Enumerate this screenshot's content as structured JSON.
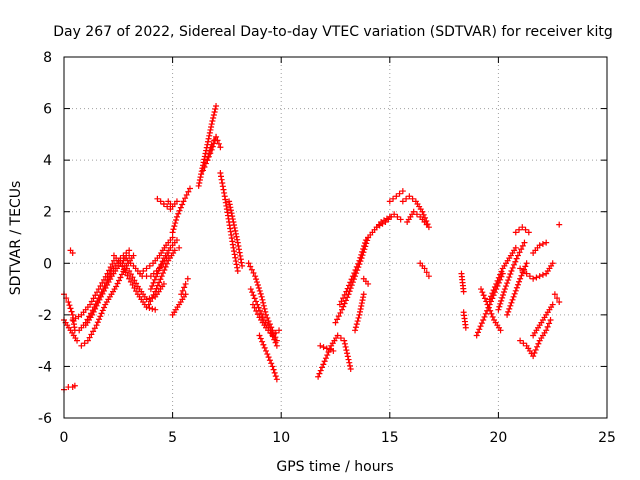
{
  "chart_data": {
    "type": "scatter",
    "title": "Day 267 of 2022, Sidereal Day-to-day VTEC variation (SDTVAR) for receiver kitg",
    "xlabel": "GPS time / hours",
    "ylabel": "SDTVAR / TECUs",
    "xlim": [
      0,
      25
    ],
    "ylim": [
      -6,
      8
    ],
    "xticks": [
      "0",
      "5",
      "10",
      "15",
      "20",
      "25"
    ],
    "yticks": [
      "-6",
      "-4",
      "-2",
      "0",
      "2",
      "4",
      "6",
      "8"
    ],
    "grid": true,
    "marker": "+",
    "color": "#ff0000",
    "tracks": [
      {
        "x": [
          0.0,
          0.2,
          0.4,
          0.5
        ],
        "y": [
          -1.2,
          -1.5,
          -2.0,
          -2.6
        ]
      },
      {
        "x": [
          0.0,
          0.3,
          0.6
        ],
        "y": [
          -2.2,
          -2.6,
          -3.0
        ]
      },
      {
        "x": [
          0.0,
          0.2,
          0.4,
          0.5
        ],
        "y": [
          -4.9,
          -4.8,
          -4.8,
          -4.75
        ]
      },
      {
        "x": [
          0.3,
          0.4
        ],
        "y": [
          0.5,
          0.4
        ]
      },
      {
        "x": [
          0.4,
          0.8,
          1.2,
          1.6,
          2.0,
          2.3
        ],
        "y": [
          -2.2,
          -2.0,
          -1.6,
          -1.0,
          -0.4,
          0.1
        ]
      },
      {
        "x": [
          0.7,
          1.0,
          1.4,
          1.8,
          2.2,
          2.6,
          3.0
        ],
        "y": [
          -2.6,
          -2.3,
          -1.7,
          -1.0,
          -0.3,
          0.2,
          0.5
        ]
      },
      {
        "x": [
          0.8,
          1.1,
          1.5,
          1.9,
          2.4,
          2.8,
          3.2
        ],
        "y": [
          -3.2,
          -3.0,
          -2.4,
          -1.6,
          -0.9,
          -0.2,
          0.3
        ]
      },
      {
        "x": [
          1.0,
          1.3,
          1.7,
          2.2,
          2.6,
          3.0
        ],
        "y": [
          -2.4,
          -2.0,
          -1.3,
          -0.5,
          0.0,
          0.3
        ]
      },
      {
        "x": [
          2.3,
          2.6,
          3.0,
          3.4,
          3.8,
          4.2
        ],
        "y": [
          0.3,
          0.0,
          -0.6,
          -1.2,
          -1.7,
          -1.8
        ]
      },
      {
        "x": [
          2.6,
          3.0,
          3.4,
          3.8,
          4.2,
          4.6
        ],
        "y": [
          0.1,
          -0.3,
          -0.9,
          -1.4,
          -1.3,
          -0.8
        ]
      },
      {
        "x": [
          2.8,
          3.2,
          3.6,
          4.0,
          4.4,
          4.8
        ],
        "y": [
          0.2,
          -0.1,
          -0.5,
          -0.5,
          -0.2,
          0.3
        ]
      },
      {
        "x": [
          3.5,
          3.8,
          4.1,
          4.4,
          4.7,
          5.0
        ],
        "y": [
          -0.4,
          -0.2,
          0.0,
          0.3,
          0.7,
          1.0
        ]
      },
      {
        "x": [
          3.9,
          4.2,
          4.5,
          4.8,
          5.1,
          5.3
        ],
        "y": [
          -1.6,
          -1.1,
          -0.5,
          0.1,
          0.5,
          0.6
        ]
      },
      {
        "x": [
          4.0,
          4.3,
          4.6,
          4.9,
          5.2
        ],
        "y": [
          -1.0,
          -0.4,
          0.2,
          0.6,
          0.9
        ]
      },
      {
        "x": [
          4.3,
          4.6,
          4.9
        ],
        "y": [
          2.5,
          2.3,
          2.1
        ]
      },
      {
        "x": [
          4.6,
          4.8,
          5.0,
          5.2
        ],
        "y": [
          2.3,
          2.4,
          2.2,
          2.4
        ]
      },
      {
        "x": [
          5.0,
          5.2,
          5.5,
          5.8
        ],
        "y": [
          1.2,
          1.8,
          2.4,
          2.9
        ]
      },
      {
        "x": [
          5.0,
          5.3,
          5.6
        ],
        "y": [
          -2.0,
          -1.6,
          -1.2
        ]
      },
      {
        "x": [
          5.4,
          5.6,
          5.7
        ],
        "y": [
          -1.2,
          -0.8,
          -0.6
        ]
      },
      {
        "x": [
          6.2,
          6.4,
          6.6,
          6.8,
          7.0
        ],
        "y": [
          3.0,
          3.8,
          4.6,
          5.4,
          6.1
        ]
      },
      {
        "x": [
          6.4,
          6.6,
          6.8,
          7.0
        ],
        "y": [
          3.6,
          4.0,
          4.4,
          4.9
        ]
      },
      {
        "x": [
          6.6,
          6.8,
          7.0,
          7.2
        ],
        "y": [
          4.0,
          4.6,
          4.9,
          4.5
        ]
      },
      {
        "x": [
          7.2,
          7.4,
          7.6,
          7.8,
          8.0
        ],
        "y": [
          3.5,
          2.6,
          1.6,
          0.6,
          -0.3
        ]
      },
      {
        "x": [
          7.6,
          7.8,
          8.0,
          8.2
        ],
        "y": [
          2.4,
          1.6,
          0.8,
          -0.1
        ]
      },
      {
        "x": [
          8.5,
          8.8,
          9.1,
          9.3,
          9.6,
          9.8
        ],
        "y": [
          0.0,
          -0.5,
          -1.3,
          -2.0,
          -2.6,
          -3.0
        ]
      },
      {
        "x": [
          8.6,
          8.9,
          9.2,
          9.5,
          9.8
        ],
        "y": [
          -1.0,
          -1.6,
          -2.2,
          -2.6,
          -3.2
        ]
      },
      {
        "x": [
          8.7,
          9.0,
          9.3,
          9.6,
          9.9
        ],
        "y": [
          -1.6,
          -2.1,
          -2.5,
          -2.8,
          -2.6
        ]
      },
      {
        "x": [
          9.0,
          9.3,
          9.6,
          9.8
        ],
        "y": [
          -2.8,
          -3.4,
          -4.0,
          -4.5
        ]
      },
      {
        "x": [
          11.7,
          12.0,
          12.3,
          12.6,
          12.9,
          13.2
        ],
        "y": [
          -4.4,
          -3.8,
          -3.2,
          -2.8,
          -3.0,
          -4.1
        ]
      },
      {
        "x": [
          11.8,
          12.1,
          12.4
        ],
        "y": [
          -3.2,
          -3.3,
          -3.4
        ]
      },
      {
        "x": [
          12.5,
          12.8,
          13.1,
          13.4,
          13.7,
          14.0
        ],
        "y": [
          -2.3,
          -1.8,
          -1.2,
          -0.5,
          0.2,
          1.0
        ]
      },
      {
        "x": [
          12.7,
          13.0,
          13.3,
          13.6,
          13.9
        ],
        "y": [
          -1.6,
          -1.1,
          -0.5,
          0.1,
          0.9
        ]
      },
      {
        "x": [
          13.4,
          13.6,
          13.8
        ],
        "y": [
          -2.6,
          -2.0,
          -1.2
        ]
      },
      {
        "x": [
          14.0,
          14.3,
          14.6,
          15.0
        ],
        "y": [
          1.0,
          1.3,
          1.6,
          1.8
        ]
      },
      {
        "x": [
          14.4,
          14.8,
          15.2,
          15.5
        ],
        "y": [
          1.4,
          1.6,
          1.9,
          1.7
        ]
      },
      {
        "x": [
          15.0,
          15.3,
          15.6
        ],
        "y": [
          2.4,
          2.6,
          2.8
        ]
      },
      {
        "x": [
          15.6,
          15.9,
          16.2,
          16.5,
          16.8
        ],
        "y": [
          2.4,
          2.6,
          2.4,
          2.0,
          1.4
        ]
      },
      {
        "x": [
          15.8,
          16.1,
          16.4,
          16.7
        ],
        "y": [
          1.6,
          2.0,
          1.8,
          1.5
        ]
      },
      {
        "x": [
          16.4,
          16.6,
          16.8
        ],
        "y": [
          0.0,
          -0.2,
          -0.5
        ]
      },
      {
        "x": [
          13.8,
          14.0
        ],
        "y": [
          -0.6,
          -0.8
        ]
      },
      {
        "x": [
          18.3,
          18.4
        ],
        "y": [
          -0.4,
          -1.1
        ]
      },
      {
        "x": [
          18.4,
          18.5
        ],
        "y": [
          -1.9,
          -2.5
        ]
      },
      {
        "x": [
          19.0,
          19.3,
          19.6,
          19.9,
          20.2
        ],
        "y": [
          -2.8,
          -2.2,
          -1.6,
          -1.0,
          -0.4
        ]
      },
      {
        "x": [
          19.2,
          19.5,
          19.8,
          20.1
        ],
        "y": [
          -1.0,
          -1.6,
          -2.2,
          -2.6
        ]
      },
      {
        "x": [
          19.6,
          19.9,
          20.2,
          20.5,
          20.8
        ],
        "y": [
          -1.4,
          -0.8,
          -0.2,
          0.2,
          0.6
        ]
      },
      {
        "x": [
          20.0,
          20.3,
          20.6,
          20.9,
          21.2
        ],
        "y": [
          -1.8,
          -1.0,
          -0.3,
          0.3,
          0.8
        ]
      },
      {
        "x": [
          20.4,
          20.7,
          21.0,
          21.3
        ],
        "y": [
          -2.0,
          -1.3,
          -0.6,
          0.0
        ]
      },
      {
        "x": [
          20.8,
          21.1,
          21.4
        ],
        "y": [
          1.2,
          1.4,
          1.2
        ]
      },
      {
        "x": [
          21.0,
          21.3,
          21.6,
          21.9,
          22.2,
          22.5
        ],
        "y": [
          -0.2,
          -0.4,
          -0.6,
          -0.5,
          -0.4,
          0.0
        ]
      },
      {
        "x": [
          21.6,
          21.9,
          22.2
        ],
        "y": [
          0.4,
          0.7,
          0.8
        ]
      },
      {
        "x": [
          21.0,
          21.3,
          21.6,
          21.9,
          22.2,
          22.4
        ],
        "y": [
          -3.0,
          -3.2,
          -3.6,
          -3.0,
          -2.6,
          -2.2
        ]
      },
      {
        "x": [
          21.6,
          21.9,
          22.2,
          22.5
        ],
        "y": [
          -2.8,
          -2.4,
          -2.0,
          -1.6
        ]
      },
      {
        "x": [
          22.6,
          22.8
        ],
        "y": [
          -1.2,
          -1.5
        ]
      },
      {
        "x": [
          22.8
        ],
        "y": [
          1.5
        ]
      }
    ]
  }
}
